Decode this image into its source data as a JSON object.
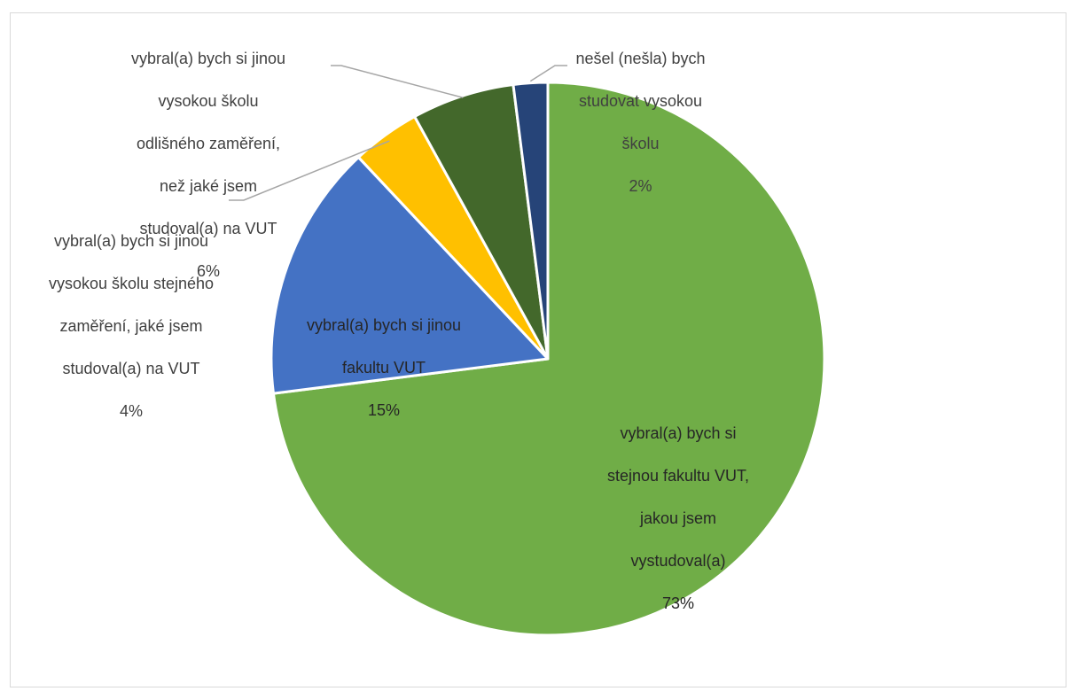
{
  "chart_data": {
    "type": "pie",
    "title": "",
    "slices": [
      {
        "label": "vybral(a) bych si stejnou fakultu VUT, jakou jsem vystudoval(a)",
        "label_lines": [
          "vybral(a) bych si",
          "stejnou fakultu VUT,",
          "jakou jsem",
          "vystudoval(a)"
        ],
        "value": 73,
        "value_label": "73%",
        "color": "#70ad47"
      },
      {
        "label": "vybral(a) bych si jinou fakultu VUT",
        "label_lines": [
          "vybral(a) bych si jinou",
          "fakultu VUT"
        ],
        "value": 15,
        "value_label": "15%",
        "color": "#4472c4"
      },
      {
        "label": "vybral(a) bych si jinou vysokou školu stejného zaměření, jaké jsem studoval(a) na VUT",
        "label_lines": [
          "vybral(a) bych si jinou",
          "vysokou školu stejného",
          "zaměření, jaké jsem",
          "studoval(a) na VUT"
        ],
        "value": 4,
        "value_label": "4%",
        "color": "#ffc000"
      },
      {
        "label": "vybral(a) bych si jinou vysokou školu odlišného zaměření, než jaké jsem studoval(a) na VUT",
        "label_lines": [
          "vybral(a) bych si jinou",
          "vysokou školu",
          "odlišného zaměření,",
          "než jaké jsem",
          "studoval(a) na VUT"
        ],
        "value": 6,
        "value_label": "6%",
        "color": "#43682b"
      },
      {
        "label": "nešel (nešla) bych studovat vysokou školu",
        "label_lines": [
          "nešel (nešla) bych",
          "studovat vysokou",
          "školu"
        ],
        "value": 2,
        "value_label": "2%",
        "color": "#264478"
      }
    ],
    "start_angle_deg": 0,
    "direction": "clockwise",
    "legend": "none"
  }
}
